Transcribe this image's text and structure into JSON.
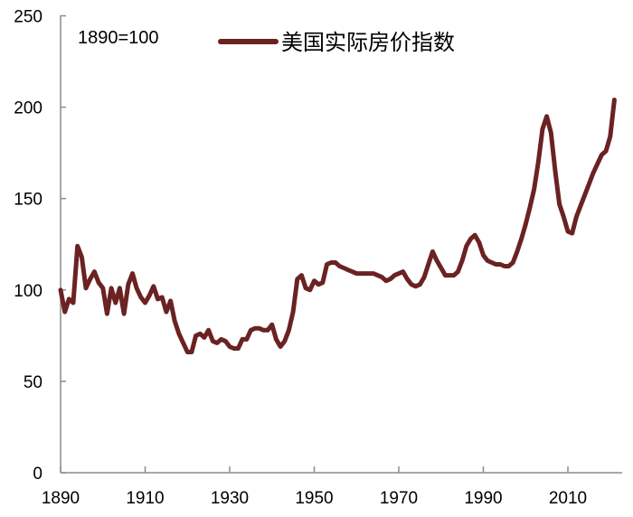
{
  "chart_data": {
    "type": "line",
    "title": "",
    "annotation": "1890=100",
    "xlabel": "",
    "ylabel": "",
    "xlim": [
      1890,
      2022
    ],
    "ylim": [
      0,
      250
    ],
    "yticks": [
      0,
      50,
      100,
      150,
      200,
      250
    ],
    "xticks": [
      1890,
      1910,
      1930,
      1950,
      1970,
      1990,
      2010
    ],
    "grid": false,
    "legend_position": "top-center",
    "series": [
      {
        "name": "美国实际房价指数",
        "color": "#6b2222",
        "x": [
          1890,
          1891,
          1892,
          1893,
          1894,
          1895,
          1896,
          1897,
          1898,
          1899,
          1900,
          1901,
          1902,
          1903,
          1904,
          1905,
          1906,
          1907,
          1908,
          1909,
          1910,
          1911,
          1912,
          1913,
          1914,
          1915,
          1916,
          1917,
          1918,
          1919,
          1920,
          1921,
          1922,
          1923,
          1924,
          1925,
          1926,
          1927,
          1928,
          1929,
          1930,
          1931,
          1932,
          1933,
          1934,
          1935,
          1936,
          1937,
          1938,
          1939,
          1940,
          1941,
          1942,
          1943,
          1944,
          1945,
          1946,
          1947,
          1948,
          1949,
          1950,
          1951,
          1952,
          1953,
          1954,
          1955,
          1956,
          1957,
          1958,
          1959,
          1960,
          1961,
          1962,
          1963,
          1964,
          1965,
          1966,
          1967,
          1968,
          1969,
          1970,
          1971,
          1972,
          1973,
          1974,
          1975,
          1976,
          1977,
          1978,
          1979,
          1980,
          1981,
          1982,
          1983,
          1984,
          1985,
          1986,
          1987,
          1988,
          1989,
          1990,
          1991,
          1992,
          1993,
          1994,
          1995,
          1996,
          1997,
          1998,
          1999,
          2000,
          2001,
          2002,
          2003,
          2004,
          2005,
          2006,
          2007,
          2008,
          2009,
          2010,
          2011,
          2012,
          2013,
          2014,
          2015,
          2016,
          2017,
          2018,
          2019,
          2020,
          2021
        ],
        "values": [
          100,
          88,
          95,
          93,
          124,
          118,
          101,
          106,
          110,
          104,
          101,
          87,
          101,
          93,
          101,
          87,
          103,
          109,
          101,
          96,
          93,
          97,
          102,
          95,
          96,
          88,
          94,
          83,
          76,
          71,
          66,
          66,
          75,
          76,
          74,
          78,
          72,
          71,
          73,
          72,
          69,
          68,
          68,
          73,
          73,
          78,
          79,
          79,
          78,
          78,
          81,
          73,
          69,
          72,
          78,
          88,
          106,
          108,
          101,
          100,
          105,
          103,
          104,
          114,
          115,
          115,
          113,
          112,
          111,
          110,
          109,
          109,
          109,
          109,
          109,
          108,
          107,
          105,
          106,
          108,
          109,
          110,
          106,
          103,
          102,
          103,
          107,
          114,
          121,
          116,
          112,
          108,
          108,
          108,
          110,
          116,
          124,
          128,
          130,
          126,
          119,
          116,
          115,
          114,
          114,
          113,
          113,
          115,
          121,
          128,
          136,
          145,
          155,
          170,
          188,
          195,
          186,
          165,
          147,
          140,
          132,
          131,
          140,
          146,
          152,
          158,
          164,
          169,
          174,
          176,
          184,
          204
        ]
      }
    ]
  },
  "legend": {
    "label": "美国实际房价指数"
  },
  "annotation": {
    "text": "1890=100"
  },
  "axes": {
    "y_labels": [
      "0",
      "50",
      "100",
      "150",
      "200",
      "250"
    ],
    "x_labels": [
      "1890",
      "1910",
      "1930",
      "1950",
      "1970",
      "1990",
      "2010"
    ]
  }
}
